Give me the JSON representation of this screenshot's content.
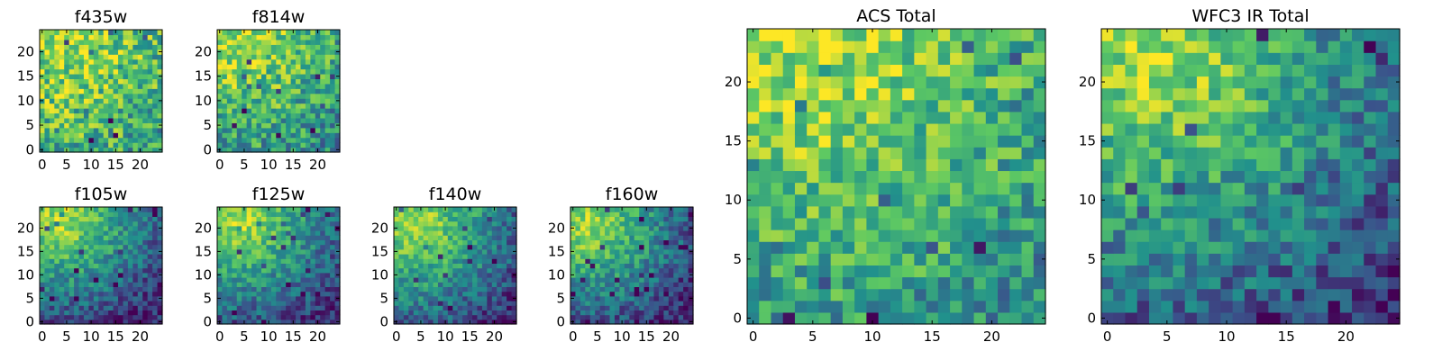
{
  "colormap": [
    "#440154",
    "#3b528b",
    "#21918c",
    "#5ec962",
    "#fde725"
  ],
  "chart_data": [
    {
      "type": "heatmap",
      "title": "f435w",
      "grid_size": 25,
      "xticks": [
        "0",
        "5",
        "10",
        "15",
        "20"
      ],
      "yticks": [
        "0",
        "5",
        "10",
        "15",
        "20"
      ],
      "hotspot": [
        4,
        23
      ],
      "falloff": 0.35,
      "noise": 0.55,
      "seed": 11
    },
    {
      "type": "heatmap",
      "title": "f814w",
      "grid_size": 25,
      "xticks": [
        "0",
        "5",
        "10",
        "15",
        "20"
      ],
      "yticks": [
        "0",
        "5",
        "10",
        "15",
        "20"
      ],
      "hotspot": [
        4,
        23
      ],
      "falloff": 0.45,
      "noise": 0.5,
      "seed": 23
    },
    {
      "type": "heatmap",
      "title": "f105w",
      "grid_size": 25,
      "xticks": [
        "0",
        "5",
        "10",
        "15",
        "20"
      ],
      "yticks": [
        "0",
        "5",
        "10",
        "15",
        "20"
      ],
      "hotspot": [
        4,
        22
      ],
      "falloff": 0.9,
      "noise": 0.35,
      "seed": 37
    },
    {
      "type": "heatmap",
      "title": "f125w",
      "grid_size": 25,
      "xticks": [
        "0",
        "5",
        "10",
        "15",
        "20"
      ],
      "yticks": [
        "0",
        "5",
        "10",
        "15",
        "20"
      ],
      "hotspot": [
        4,
        22
      ],
      "falloff": 0.85,
      "noise": 0.35,
      "seed": 41
    },
    {
      "type": "heatmap",
      "title": "f140w",
      "grid_size": 25,
      "xticks": [
        "0",
        "5",
        "10",
        "15",
        "20"
      ],
      "yticks": [
        "0",
        "5",
        "10",
        "15",
        "20"
      ],
      "hotspot": [
        4,
        21
      ],
      "falloff": 0.85,
      "noise": 0.35,
      "seed": 53
    },
    {
      "type": "heatmap",
      "title": "f160w",
      "grid_size": 25,
      "xticks": [
        "0",
        "5",
        "10",
        "15",
        "20"
      ],
      "yticks": [
        "0",
        "5",
        "10",
        "15",
        "20"
      ],
      "hotspot": [
        3,
        21
      ],
      "falloff": 0.9,
      "noise": 0.35,
      "seed": 67
    },
    {
      "type": "heatmap",
      "title": "ACS Total",
      "grid_size": 25,
      "xticks": [
        "0",
        "5",
        "10",
        "15",
        "20"
      ],
      "yticks": [
        "0",
        "5",
        "10",
        "15",
        "20"
      ],
      "hotspot": [
        5,
        23
      ],
      "falloff": 0.45,
      "noise": 0.45,
      "seed": 79
    },
    {
      "type": "heatmap",
      "title": "WFC3 IR Total",
      "grid_size": 25,
      "xticks": [
        "0",
        "5",
        "10",
        "15",
        "20"
      ],
      "yticks": [
        "0",
        "5",
        "10",
        "15",
        "20"
      ],
      "hotspot": [
        4,
        22
      ],
      "falloff": 0.8,
      "noise": 0.4,
      "seed": 97
    }
  ]
}
